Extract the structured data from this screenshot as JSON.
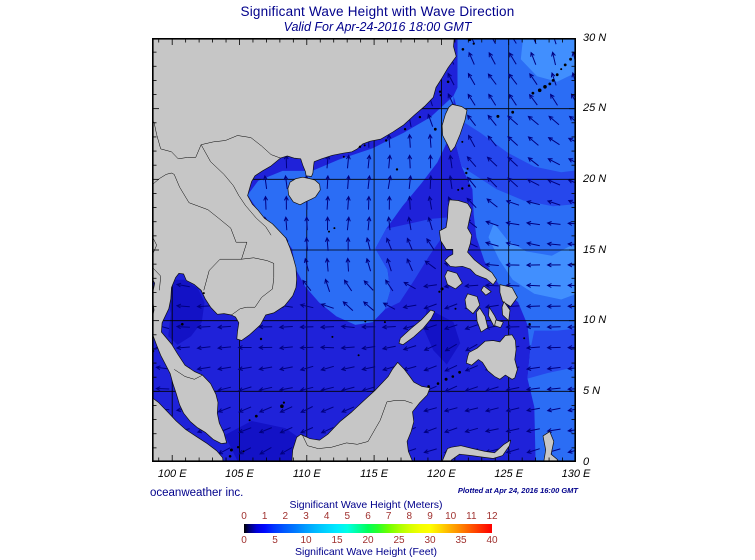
{
  "header": {
    "title": "Significant Wave Height with Wave Direction",
    "subtitle": "Valid For Apr-24-2016 18:00 GMT"
  },
  "footer": {
    "credit": "oceanweather inc.",
    "plotted_at": "Plotted at Apr 24, 2016 16:00 GMT"
  },
  "axes": {
    "lon_labels": [
      "100 E",
      "105 E",
      "110 E",
      "115 E",
      "120 E",
      "125 E",
      "130 E"
    ],
    "lat_labels": [
      "30 N",
      "25 N",
      "20 N",
      "15 N",
      "10 N",
      "5 N",
      "0"
    ],
    "lon_values": [
      100,
      105,
      110,
      115,
      120,
      125,
      130
    ],
    "lat_values": [
      30,
      25,
      20,
      15,
      10,
      5,
      0
    ]
  },
  "legend": {
    "meters_label": "Significant Wave Height (Meters)",
    "feet_label": "Significant Wave Height (Feet)",
    "meters_ticks": [
      "0",
      "1",
      "2",
      "3",
      "4",
      "5",
      "6",
      "7",
      "8",
      "9",
      "10",
      "11",
      "12"
    ],
    "feet_ticks": [
      "0",
      "5",
      "10",
      "15",
      "20",
      "25",
      "30",
      "35",
      "40"
    ],
    "tick_color": "#a03230",
    "gradient": [
      [
        0,
        "#000000"
      ],
      [
        0.02,
        "#00006e"
      ],
      [
        0.05,
        "#0000d8"
      ],
      [
        0.0833,
        "#0008ff"
      ],
      [
        0.12,
        "#0034ff"
      ],
      [
        0.167,
        "#005cff"
      ],
      [
        0.21,
        "#007cff"
      ],
      [
        0.25,
        "#009dff"
      ],
      [
        0.29,
        "#00baff"
      ],
      [
        0.333,
        "#00d4ff"
      ],
      [
        0.375,
        "#00eaff"
      ],
      [
        0.417,
        "#00ffe4"
      ],
      [
        0.458,
        "#00ffa0"
      ],
      [
        0.5,
        "#00ff59"
      ],
      [
        0.54,
        "#2aff2a"
      ],
      [
        0.583,
        "#70ff00"
      ],
      [
        0.625,
        "#a8ff00"
      ],
      [
        0.667,
        "#d4ff00"
      ],
      [
        0.708,
        "#f2ff00"
      ],
      [
        0.75,
        "#ffff00"
      ],
      [
        0.792,
        "#ffd800"
      ],
      [
        0.833,
        "#ffae00"
      ],
      [
        0.875,
        "#ff8300"
      ],
      [
        0.917,
        "#ff5500"
      ],
      [
        0.958,
        "#ff2a00"
      ],
      [
        1,
        "#fe0000"
      ]
    ]
  },
  "colors": {
    "heading_text": "#00008b",
    "axis_text": "#000000",
    "land": "#c6c6c6",
    "coastline": "#111111",
    "sea_dark": "#1312c6",
    "sea_base": "#1f22d9",
    "sea_mid": "#2647ec",
    "sea_light": "#2b6df5",
    "sea_pale": "#418ffe",
    "arrow": "#000080"
  },
  "chart_data": {
    "type": "heatmap",
    "title": "Significant Wave Height with Wave Direction",
    "valid_for": "Apr-24-2016 18:00 GMT",
    "plotted_at": "Apr 24, 2016 16:00 GMT",
    "region": "South China Sea, Gulf of Thailand and Western Pacific",
    "x_axis": {
      "ticks": [
        "100 E",
        "105 E",
        "110 E",
        "115 E",
        "120 E",
        "125 E",
        "130 E"
      ],
      "range_deg_east": [
        98.5,
        130
      ]
    },
    "y_axis": {
      "ticks": [
        "30 N",
        "25 N",
        "20 N",
        "15 N",
        "10 N",
        "5 N",
        "0"
      ],
      "range_deg_north": [
        0,
        30
      ]
    },
    "colorbar": {
      "top_label": "Significant Wave Height (Meters)",
      "bottom_label": "Significant Wave Height (Feet)",
      "meters_scale": [
        0,
        1,
        2,
        3,
        4,
        5,
        6,
        7,
        8,
        9,
        10,
        11,
        12
      ],
      "feet_scale": [
        0,
        5,
        10,
        15,
        20,
        25,
        30,
        35,
        40
      ],
      "palette": "jet: black-blue-cyan-green-yellow-orange-red"
    },
    "overlay": "wave direction arrows (pointing toward direction of travel)",
    "depicted_wave_height_m": {
      "northern_south_china_sea": "1.5-2",
      "central_south_china_sea": "1-1.5",
      "gulf_of_thailand": "0.5-1",
      "pacific_east_of_philippines": "2-2.5",
      "sulu_celebes_seas": "1-1.5"
    },
    "depicted_wave_directions": {
      "pacific_northeast": "toward NNW",
      "northern_south_china_sea": "toward N",
      "central_southern_south_china_sea": "toward W-SW",
      "gulf_of_thailand": "toward W"
    }
  }
}
